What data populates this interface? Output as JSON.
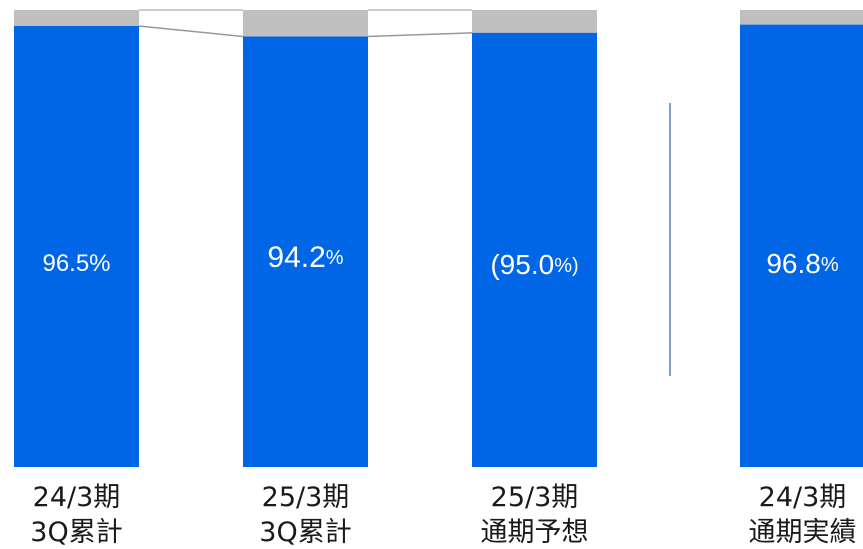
{
  "chart_data": {
    "type": "bar",
    "stacked": true,
    "ylim": [
      0,
      100
    ],
    "categories": [
      {
        "line1": "24/3期",
        "line2": "3Q累計"
      },
      {
        "line1": "25/3期",
        "line2": "3Q累計"
      },
      {
        "line1": "25/3期",
        "line2": "通期予想"
      },
      {
        "line1": "24/3期",
        "line2": "通期実績"
      }
    ],
    "series": [
      {
        "values": [
          96.5,
          94.2,
          95.0,
          96.8
        ],
        "color": "#0066e6"
      },
      {
        "values": [
          3.5,
          5.8,
          5.0,
          3.2
        ],
        "color": "#bfbfbf"
      }
    ],
    "data_labels": [
      {
        "main": "96.5%",
        "unit": ""
      },
      {
        "main": "94.2",
        "unit": "%"
      },
      {
        "main": "(95.0",
        "unit": "%)"
      },
      {
        "main": "96.8",
        "unit": "%"
      }
    ],
    "connector_lines": true,
    "separator_line": true,
    "separator_color": "#2e5fb0",
    "connector_color": "#999999"
  }
}
